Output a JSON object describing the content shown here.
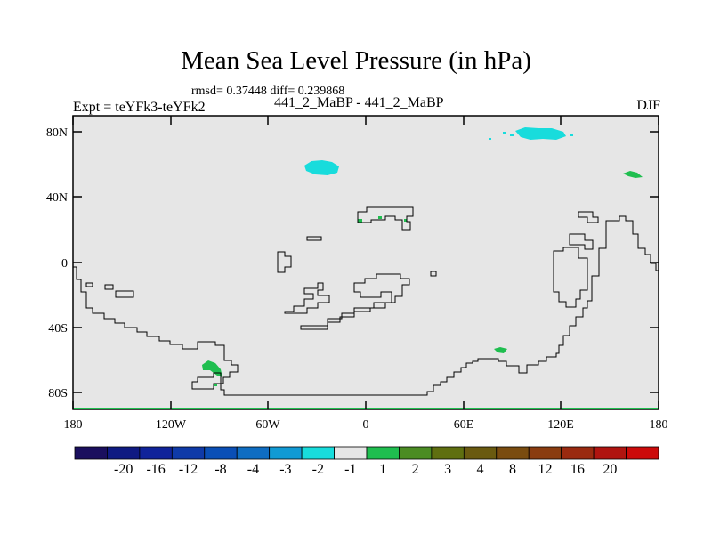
{
  "title": "Mean Sea Level Pressure (in hPa)",
  "stats": "rmsd= 0.37448 diff= 0.239868",
  "subtitle": "441_2_MaBP - 441_2_MaBP",
  "left_label": "Expt = teYFk3-teYFk2",
  "right_label": "DJF",
  "map": {
    "background_color": "#e6e6e6",
    "lat_ticks": [
      "80N",
      "40N",
      "0",
      "40S",
      "80S"
    ],
    "lon_ticks": [
      "180",
      "120W",
      "60W",
      "0",
      "60E",
      "120E",
      "180"
    ]
  },
  "colorbar": {
    "colors": [
      "#1a0f5e",
      "#0f1a82",
      "#10239a",
      "#0f3aa8",
      "#0a4fb6",
      "#0f6dc2",
      "#119ad4",
      "#18dcdc",
      "#e6e6e6",
      "#1fbe4f",
      "#4b8c23",
      "#5f6f10",
      "#6a5a10",
      "#7a4c10",
      "#8a3c10",
      "#9a2a10",
      "#b01410",
      "#cc0a0a"
    ],
    "labels": [
      "-20",
      "-16",
      "-12",
      "-8",
      "-4",
      "-3",
      "-2",
      "-1",
      "1",
      "2",
      "3",
      "4",
      "8",
      "12",
      "16",
      "20"
    ]
  }
}
